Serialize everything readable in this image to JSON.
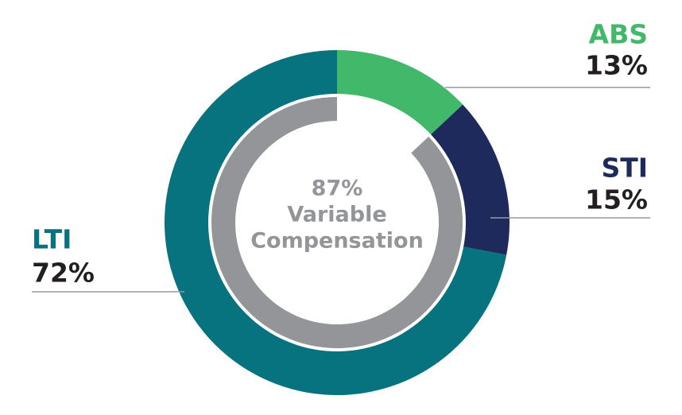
{
  "chart_data": {
    "type": "donut",
    "categories": [
      "ABS",
      "STI",
      "LTI"
    ],
    "values": [
      13,
      15,
      72
    ],
    "value_labels": [
      "13%",
      "15%",
      "72%"
    ],
    "colors": [
      "#41b86a",
      "#1f2a5c",
      "#07737f"
    ],
    "inner_ring": {
      "value": 87,
      "value_label": "87%",
      "color": "#939598",
      "label_lines": [
        "Variable",
        "Compensation"
      ]
    }
  }
}
